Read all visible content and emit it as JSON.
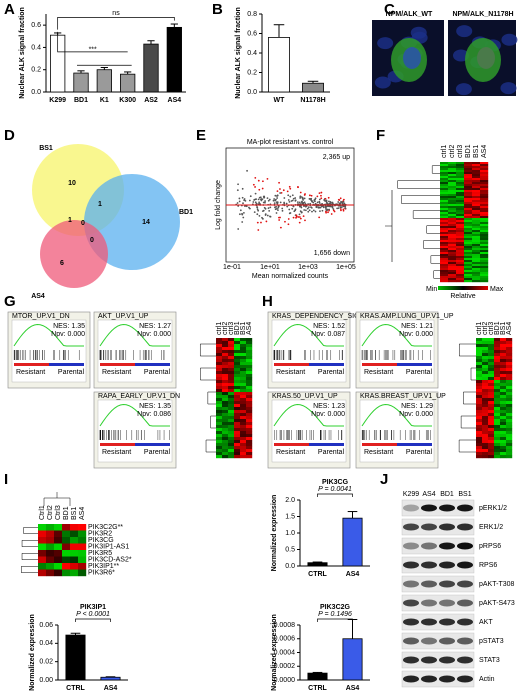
{
  "panels": [
    "A",
    "B",
    "C",
    "D",
    "E",
    "F",
    "G",
    "H",
    "I",
    "J"
  ],
  "chart_data": [
    {
      "type": "bar",
      "ylabel": "Nuclear ALK signal fraction",
      "categories": [
        "K299",
        "BD1",
        "K1",
        "K300",
        "AS2",
        "AS4"
      ],
      "values": [
        0.51,
        0.17,
        0.2,
        0.16,
        0.43,
        0.58
      ],
      "errors": [
        0.02,
        0.02,
        0.02,
        0.02,
        0.03,
        0.03
      ],
      "colors": [
        "#ffffff",
        "#9a9a9a",
        "#9a9a9a",
        "#9a9a9a",
        "#4a4a4a",
        "#000000"
      ],
      "ylim": [
        0,
        0.7
      ],
      "yticks": [
        {
          "value": 0,
          "label": "0.0"
        },
        {
          "value": 0.2,
          "label": "0.2"
        },
        {
          "value": 0.4,
          "label": "0.4"
        },
        {
          "value": 0.6,
          "label": "0.6"
        }
      ],
      "annotations": [
        "ns",
        "***"
      ]
    },
    {
      "type": "bar",
      "ylabel": "Nuclear ALK signal fraction",
      "categories": [
        "WT",
        "N1178H"
      ],
      "values": [
        0.56,
        0.09
      ],
      "errors": [
        0.13,
        0.02
      ],
      "colors": [
        "#ffffff",
        "#8a8a8a"
      ],
      "ylim": [
        0,
        0.8
      ],
      "yticks": [
        {
          "value": 0,
          "label": "0.0"
        },
        {
          "value": 0.2,
          "label": "0.2"
        },
        {
          "value": 0.4,
          "label": "0.4"
        },
        {
          "value": 0.6,
          "label": "0.6"
        },
        {
          "value": 0.8,
          "label": "0.8"
        }
      ]
    },
    {
      "type": "bar",
      "title": "PIK3CG",
      "pvalue": "P = 0.0041",
      "ylabel": "Normalized expression",
      "categories": [
        "CTRL",
        "AS4"
      ],
      "values": [
        0.1,
        1.45
      ],
      "errors": [
        0.02,
        0.2
      ],
      "colors": [
        "#000000",
        "#3a5be8"
      ],
      "ylim": [
        0,
        2
      ],
      "yticks": [
        {
          "value": 0,
          "label": "0.0"
        },
        {
          "value": 0.5,
          "label": "0.5"
        },
        {
          "value": 1,
          "label": "1.0"
        },
        {
          "value": 1.5,
          "label": "1.5"
        },
        {
          "value": 2,
          "label": "2.0"
        }
      ]
    },
    {
      "type": "bar",
      "title": "PIK3IP1",
      "pvalue": "P < 0.0001",
      "ylabel": "Normalized expression",
      "categories": [
        "CTRL",
        "AS4"
      ],
      "values": [
        0.049,
        0.003
      ],
      "errors": [
        0.002,
        0.0005
      ],
      "colors": [
        "#000000",
        "#3a5be8"
      ],
      "ylim": [
        0,
        0.06
      ],
      "yticks": [
        {
          "value": 0,
          "label": "0.00"
        },
        {
          "value": 0.02,
          "label": "0.02"
        },
        {
          "value": 0.04,
          "label": "0.04"
        },
        {
          "value": 0.06,
          "label": "0.06"
        }
      ]
    },
    {
      "type": "bar",
      "title": "PIK3C2G",
      "pvalue": "P = 0.1496",
      "ylabel": "Normalized expression",
      "categories": [
        "CTRL",
        "AS4"
      ],
      "values": [
        0.0001,
        0.0006
      ],
      "errors": [
        1e-05,
        0.00028
      ],
      "colors": [
        "#000000",
        "#3a5be8"
      ],
      "ylim": [
        0,
        0.0008
      ],
      "yticks": [
        {
          "value": 0,
          "label": "0.0000"
        },
        {
          "value": 0.0002,
          "label": "0.0002"
        },
        {
          "value": 0.0004,
          "label": "0.0004"
        },
        {
          "value": 0.0006,
          "label": "0.0006"
        },
        {
          "value": 0.0008,
          "label": "0.0008"
        }
      ]
    }
  ],
  "microscopy": [
    "NPM/ALK_WT",
    "NPM/ALK_N1178H"
  ],
  "venn": {
    "sets": [
      "BS1",
      "BD1",
      "AS4"
    ],
    "regions": [
      10,
      14,
      6,
      1,
      1,
      0,
      0
    ]
  },
  "ma_plot": {
    "title": "MA-plot resistant vs. control",
    "up": "2,365 up",
    "down": "1,656 down",
    "ylabel": "Log fold change",
    "xlabel": "Mean normalized counts",
    "xticks": [
      "1e-01",
      "1e+01",
      "1e+03",
      "1e+05"
    ]
  },
  "heatmap_columns": [
    "ctrl1",
    "ctrl2",
    "ctrl3",
    "BD1",
    "BS1",
    "AS4"
  ],
  "heatmap_legend": {
    "min": "Min",
    "max": "Max",
    "label": "Relative"
  },
  "gsea_labels": {
    "resistant": "Resistant",
    "parental": "Parental"
  },
  "gsea_g": [
    {
      "name": "MTOR_UP.V1_DN",
      "nes": "NES: 1.35",
      "npv": "Npv: 0.000"
    },
    {
      "name": "AKT_UP.V1_UP",
      "nes": "NES: 1.27",
      "npv": "Npv: 0.000"
    },
    {
      "name": "RAPA_EARLY_UP.V1_DN",
      "nes": "NES: 1.35",
      "npv": "Npv: 0.086"
    }
  ],
  "gsea_h": [
    {
      "name": "KRAS_DEPENDENCY_SIGN.",
      "nes": "NES: 1.52",
      "npv": "Npv: 0.087"
    },
    {
      "name": "KRAS.AMP.LUNG_UP.V1_UP",
      "nes": "NES: 1.21",
      "npv": "Npv: 0.000"
    },
    {
      "name": "KRAS.50_UP.V1_UP",
      "nes": "NES: 1.23",
      "npv": "Npv: 0.000"
    },
    {
      "name": "KRAS.BREAST_UP.V1_UP",
      "nes": "NES: 1.29",
      "npv": "Npv: 0.000"
    }
  ],
  "heatmap_i": {
    "columns": [
      "Ctrl1",
      "Ctrl2",
      "Ctrl3",
      "BD1",
      "BS1",
      "AS4"
    ],
    "genes": [
      "PIK3C2G**",
      "PIK3R2",
      "PIK3CG",
      "PIK3IP1-AS1",
      "PIK3R5",
      "PIK3CD-AS2*",
      "PIK3IP1**",
      "PIK3R6*"
    ]
  },
  "western": {
    "lanes": [
      "K299",
      "AS4",
      "BD1",
      "BS1"
    ],
    "proteins": [
      "pERK1/2",
      "ERK1/2",
      "pRPS6",
      "RPS6",
      "pAKT-T308",
      "pAKT-S473",
      "AKT",
      "pSTAT3",
      "STAT3",
      "Actin"
    ]
  }
}
